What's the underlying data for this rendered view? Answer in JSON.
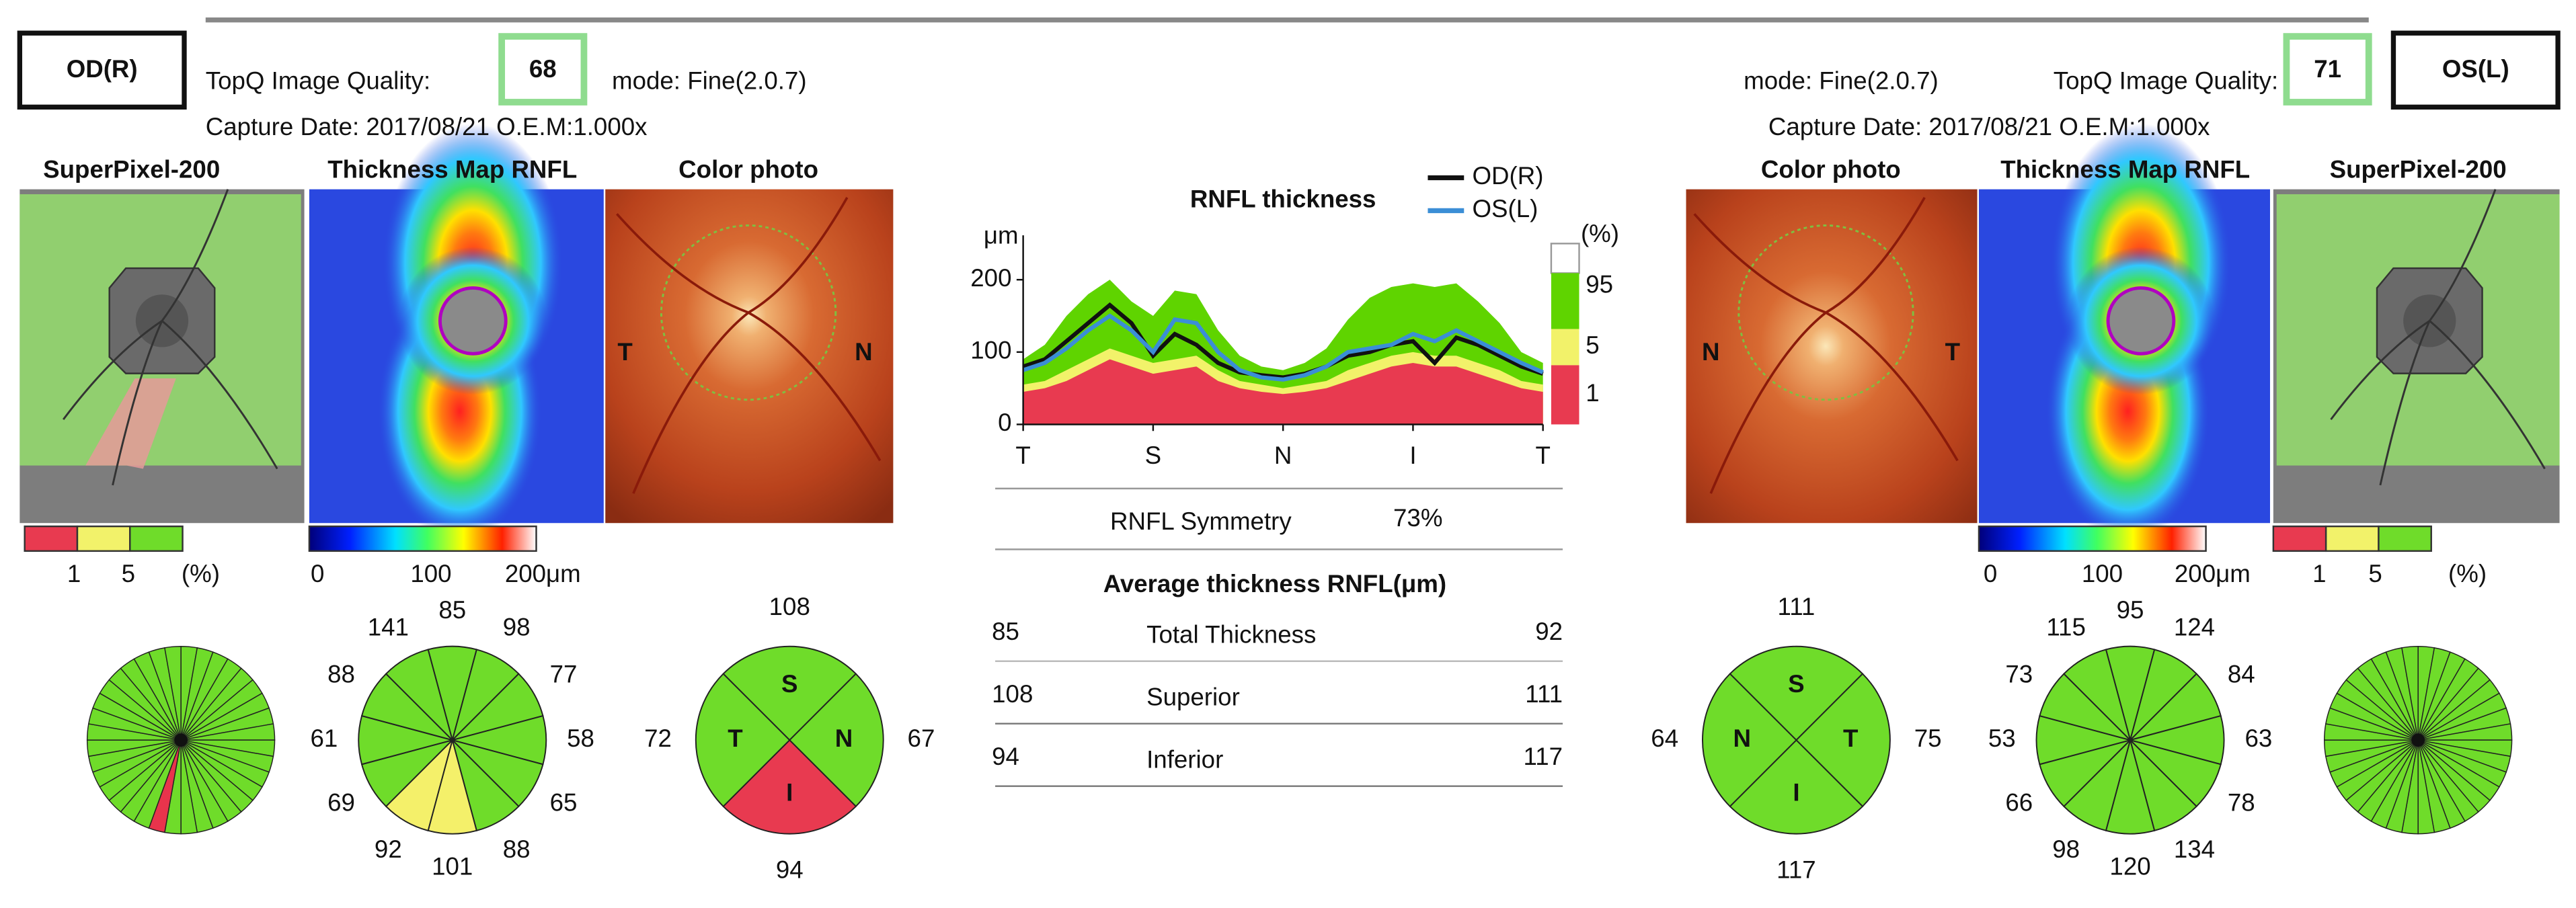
{
  "od": {
    "label": "OD(R)",
    "quality_label": "TopQ Image Quality:",
    "quality": 68,
    "mode": "mode: Fine(2.0.7)",
    "capture": "Capture Date: 2017/08/21  O.E.M:1.000x",
    "images": [
      "SuperPixel-200",
      "Thickness Map RNFL",
      "Color photo"
    ],
    "photo_left": "T",
    "photo_right": "N",
    "percentile_scale": [
      "1",
      "5",
      "(%)"
    ],
    "thickness_scale": [
      "0",
      "100",
      "200μm"
    ],
    "clock": {
      "values": [
        85,
        98,
        77,
        58,
        65,
        88,
        101,
        92,
        69,
        61,
        88,
        141
      ],
      "colors": [
        "#6fdc2a",
        "#6fdc2a",
        "#6fdc2a",
        "#6fdc2a",
        "#6fdc2a",
        "#6fdc2a",
        "#f4f06a",
        "#f4f06a",
        "#6fdc2a",
        "#6fdc2a",
        "#6fdc2a",
        "#6fdc2a"
      ]
    },
    "quadrants": [
      {
        "letter": "S",
        "value": 108,
        "color": "#6fdc2a"
      },
      {
        "letter": "N",
        "value": 67,
        "color": "#6fdc2a"
      },
      {
        "letter": "I",
        "value": 94,
        "color": "#e83a50"
      },
      {
        "letter": "T",
        "value": 72,
        "color": "#6fdc2a"
      }
    ]
  },
  "os": {
    "label": "OS(L)",
    "quality_label": "TopQ Image Quality:",
    "quality": 71,
    "mode": "mode: Fine(2.0.7)",
    "capture": "Capture Date: 2017/08/21  O.E.M:1.000x",
    "images": [
      "Color photo",
      "Thickness Map RNFL",
      "SuperPixel-200"
    ],
    "photo_left": "N",
    "photo_right": "T",
    "percentile_scale": [
      "1",
      "5",
      "(%)"
    ],
    "thickness_scale": [
      "0",
      "100",
      "200μm"
    ],
    "clock": {
      "values": [
        95,
        124,
        84,
        63,
        78,
        134,
        120,
        98,
        66,
        53,
        73,
        115
      ],
      "colors": [
        "#6fdc2a",
        "#6fdc2a",
        "#6fdc2a",
        "#6fdc2a",
        "#6fdc2a",
        "#6fdc2a",
        "#6fdc2a",
        "#6fdc2a",
        "#6fdc2a",
        "#6fdc2a",
        "#6fdc2a",
        "#6fdc2a"
      ]
    },
    "quadrants": [
      {
        "letter": "S",
        "value": 111,
        "color": "#6fdc2a"
      },
      {
        "letter": "T",
        "value": 75,
        "color": "#6fdc2a"
      },
      {
        "letter": "I",
        "value": 117,
        "color": "#6fdc2a"
      },
      {
        "letter": "N",
        "value": 64,
        "color": "#6fdc2a"
      }
    ]
  },
  "chart_data": {
    "type": "line",
    "title": "RNFL thickness",
    "y_label": "μm",
    "x": [
      0,
      15,
      30,
      45,
      60,
      75,
      90,
      105,
      120,
      135,
      150,
      165,
      180,
      195,
      210,
      225,
      240,
      255,
      270,
      285,
      300,
      315,
      330,
      345,
      360
    ],
    "xlim": [
      0,
      360
    ],
    "xticks": [
      {
        "value": 0,
        "label": "T"
      },
      {
        "value": 90,
        "label": "S"
      },
      {
        "value": 180,
        "label": "N"
      },
      {
        "value": 270,
        "label": "I"
      },
      {
        "value": 360,
        "label": "T"
      }
    ],
    "ylim": [
      0,
      250
    ],
    "yticks": [
      0,
      100,
      200
    ],
    "series": [
      {
        "name": "OD(R)",
        "color": "#111111",
        "values": [
          80,
          90,
          115,
          140,
          165,
          140,
          95,
          125,
          110,
          85,
          72,
          68,
          65,
          70,
          80,
          95,
          100,
          110,
          115,
          85,
          120,
          110,
          95,
          80,
          70
        ]
      },
      {
        "name": "OS(L)",
        "color": "#3b8ed6",
        "values": [
          75,
          85,
          105,
          130,
          150,
          130,
          100,
          145,
          140,
          100,
          75,
          65,
          62,
          68,
          80,
          100,
          105,
          110,
          125,
          115,
          130,
          115,
          100,
          85,
          72
        ]
      }
    ],
    "band_unit": "(%)",
    "bands": [
      {
        "name": "95",
        "color": "#5fd400",
        "values": [
          90,
          110,
          150,
          180,
          200,
          170,
          150,
          185,
          180,
          130,
          95,
          80,
          75,
          85,
          105,
          145,
          175,
          190,
          195,
          190,
          195,
          170,
          140,
          100,
          85
        ]
      },
      {
        "name": "5",
        "color": "#f2f26a",
        "values": [
          55,
          60,
          75,
          90,
          105,
          95,
          85,
          90,
          95,
          75,
          60,
          55,
          50,
          55,
          60,
          75,
          85,
          95,
          100,
          95,
          95,
          85,
          75,
          60,
          55
        ]
      },
      {
        "name": "1",
        "color": "#e83a50",
        "values": [
          45,
          50,
          60,
          75,
          90,
          80,
          70,
          75,
          80,
          60,
          50,
          45,
          42,
          45,
          50,
          60,
          70,
          80,
          85,
          80,
          80,
          70,
          60,
          50,
          45
        ]
      }
    ]
  },
  "symmetry": {
    "label": "RNFL Symmetry",
    "value": "73%"
  },
  "table": {
    "title": "Average thickness RNFL(μm)",
    "rows": [
      [
        85,
        "Total Thickness",
        92
      ],
      [
        108,
        "Superior",
        111
      ],
      [
        94,
        "Inferior",
        117
      ]
    ]
  }
}
